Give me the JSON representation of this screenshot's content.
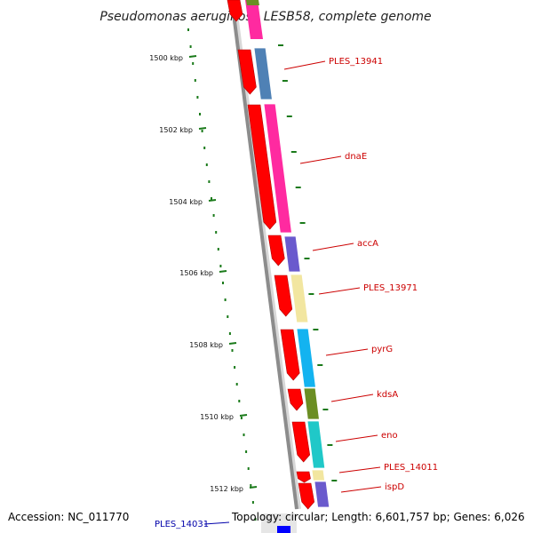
{
  "title": "Pseudomonas aeruginosa LESB58, complete genome",
  "footer": {
    "accession": "Accession: NC_011770",
    "topology": "Topology: circular; Length: 6,601,757 bp; Genes: 6,026"
  },
  "colors": {
    "backbone": "#8c8c8c",
    "kbp_tick": "#1a7a1a",
    "forward_gene": "#ff0000",
    "label_forward": "#cc0000",
    "label_reverse": "#0000aa",
    "reverse_gene": "#0000ff"
  },
  "kbp_labels": [
    "1500 kbp",
    "1502 kbp",
    "1504 kbp",
    "1506 kbp",
    "1508 kbp",
    "1510 kbp",
    "1512 kbp"
  ],
  "genes": [
    {
      "name": "PLES_13941",
      "cog_color": "#4f81b5"
    },
    {
      "name": "dnaE",
      "cog_color": "#ff2aa0"
    },
    {
      "name": "accA",
      "cog_color": "#6a5acd"
    },
    {
      "name": "PLES_13971",
      "cog_color": "#f2e6a0"
    },
    {
      "name": "pyrG",
      "cog_color": "#13b3f0"
    },
    {
      "name": "kdsA",
      "cog_color": "#6b8e23"
    },
    {
      "name": "eno",
      "cog_color": "#20c8c8"
    },
    {
      "name": "PLES_14011",
      "cog_color": "#f2e6a0"
    },
    {
      "name": "ispD",
      "cog_color": "#6a5acd"
    }
  ],
  "reverse_genes": [
    {
      "name": "PLES_14031"
    }
  ]
}
